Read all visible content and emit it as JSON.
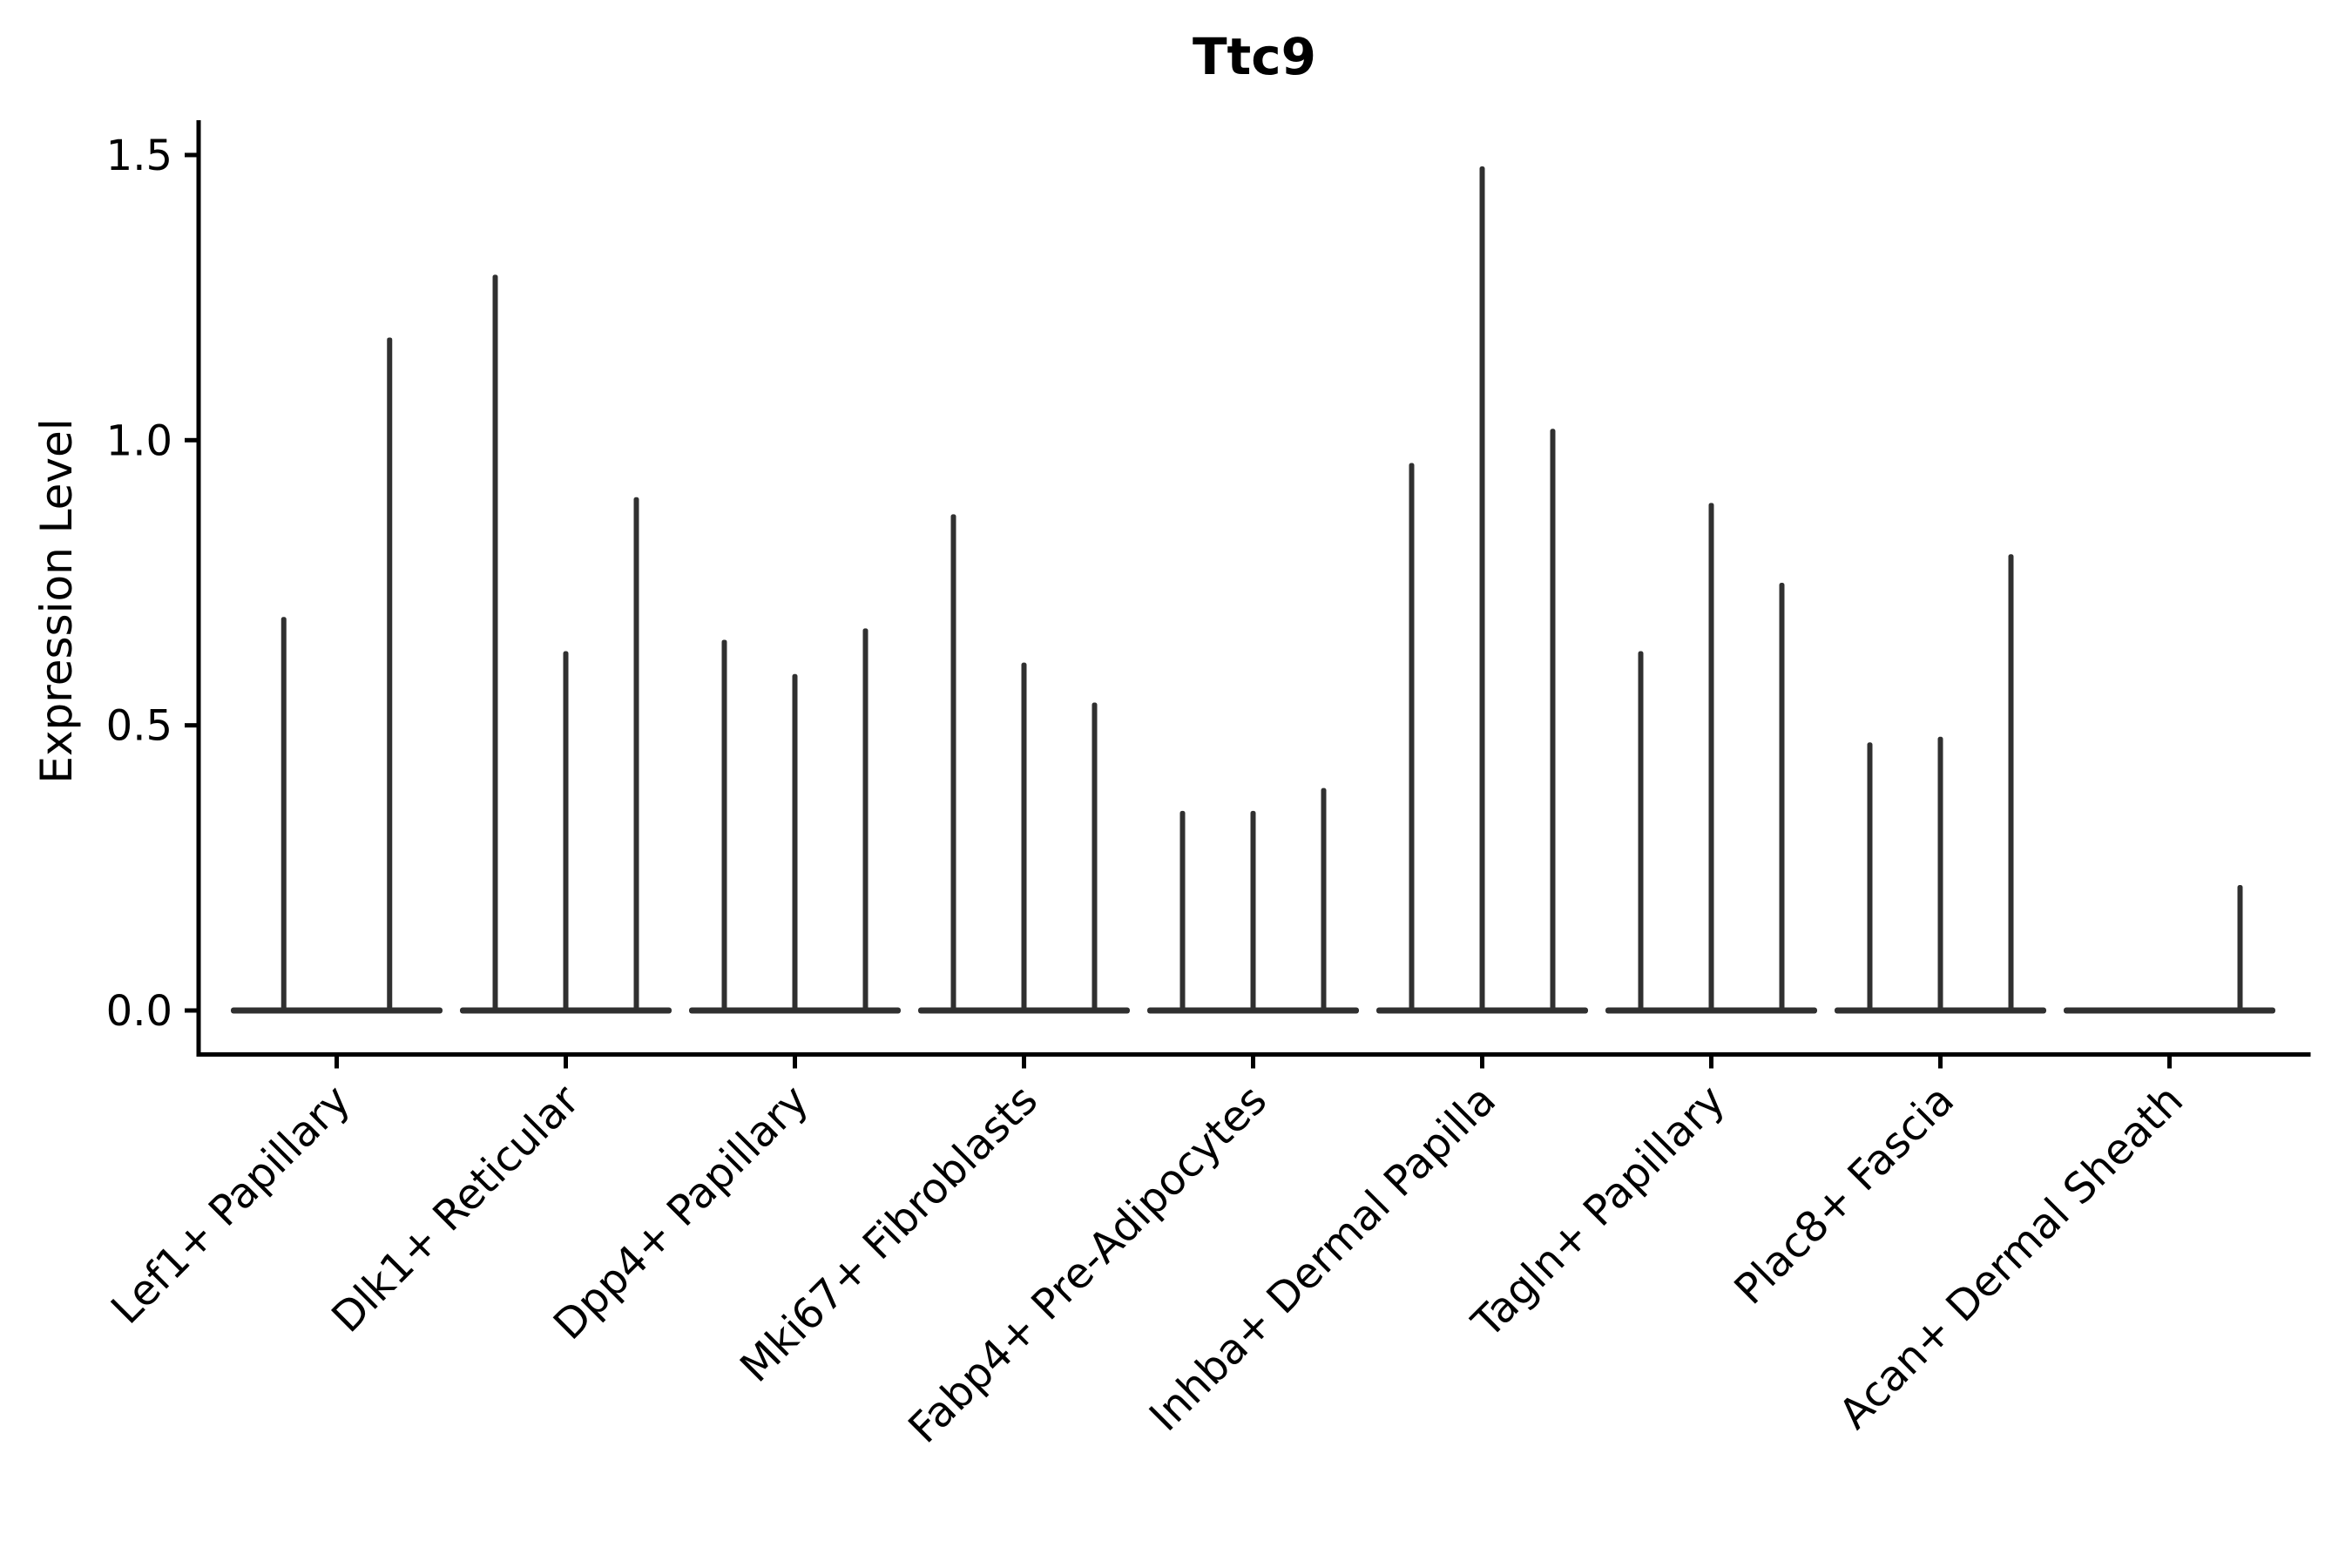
{
  "chart_data": {
    "type": "violin",
    "title": "Ttc9",
    "ylabel": "Expression Level",
    "xlabel": "",
    "grid": false,
    "legend": "none",
    "ylim": [
      -0.08,
      1.56
    ],
    "yticks": [
      0.0,
      0.5,
      1.0,
      1.5
    ],
    "ytick_labels": [
      "0.0",
      "0.5",
      "1.0",
      "1.5"
    ],
    "categories": [
      "Lef1+ Papillary",
      "Dlk1+ Reticular",
      "Dpp4+ Papillary",
      "Mki67+ Fibroblasts",
      "Fabp4+ Pre-Adipocytes",
      "Inhba+ Dermal Papilla",
      "Tagln+ Papillary",
      "Plac8+ Fascia",
      "Acan+ Dermal Sheath"
    ],
    "groups": [
      {
        "category": "Lef1+ Papillary",
        "violin_max_values": [
          0.69,
          1.18
        ]
      },
      {
        "category": "Dlk1+ Reticular",
        "violin_max_values": [
          1.29,
          0.63,
          0.9
        ]
      },
      {
        "category": "Dpp4+ Papillary",
        "violin_max_values": [
          0.65,
          0.59,
          0.67
        ]
      },
      {
        "category": "Mki67+ Fibroblasts",
        "violin_max_values": [
          0.87,
          0.61,
          0.54
        ]
      },
      {
        "category": "Fabp4+ Pre-Adipocytes",
        "violin_max_values": [
          0.35,
          0.35,
          0.39
        ]
      },
      {
        "category": "Inhba+ Dermal Papilla",
        "violin_max_values": [
          0.96,
          1.48,
          1.02
        ]
      },
      {
        "category": "Tagln+ Papillary",
        "violin_max_values": [
          0.63,
          0.89,
          0.75
        ]
      },
      {
        "category": "Plac8+ Fascia",
        "violin_max_values": [
          0.47,
          0.48,
          0.8
        ]
      },
      {
        "category": "Acan+ Dermal Sheath",
        "violin_max_values": [
          0.0,
          0.0,
          0.22
        ]
      }
    ],
    "violin_color": "#303030",
    "axis_color": "#000000",
    "description": "Each violin is collapsed to a flat baseline at 0 with a thin vertical spike; value is the spike maximum expression level."
  }
}
